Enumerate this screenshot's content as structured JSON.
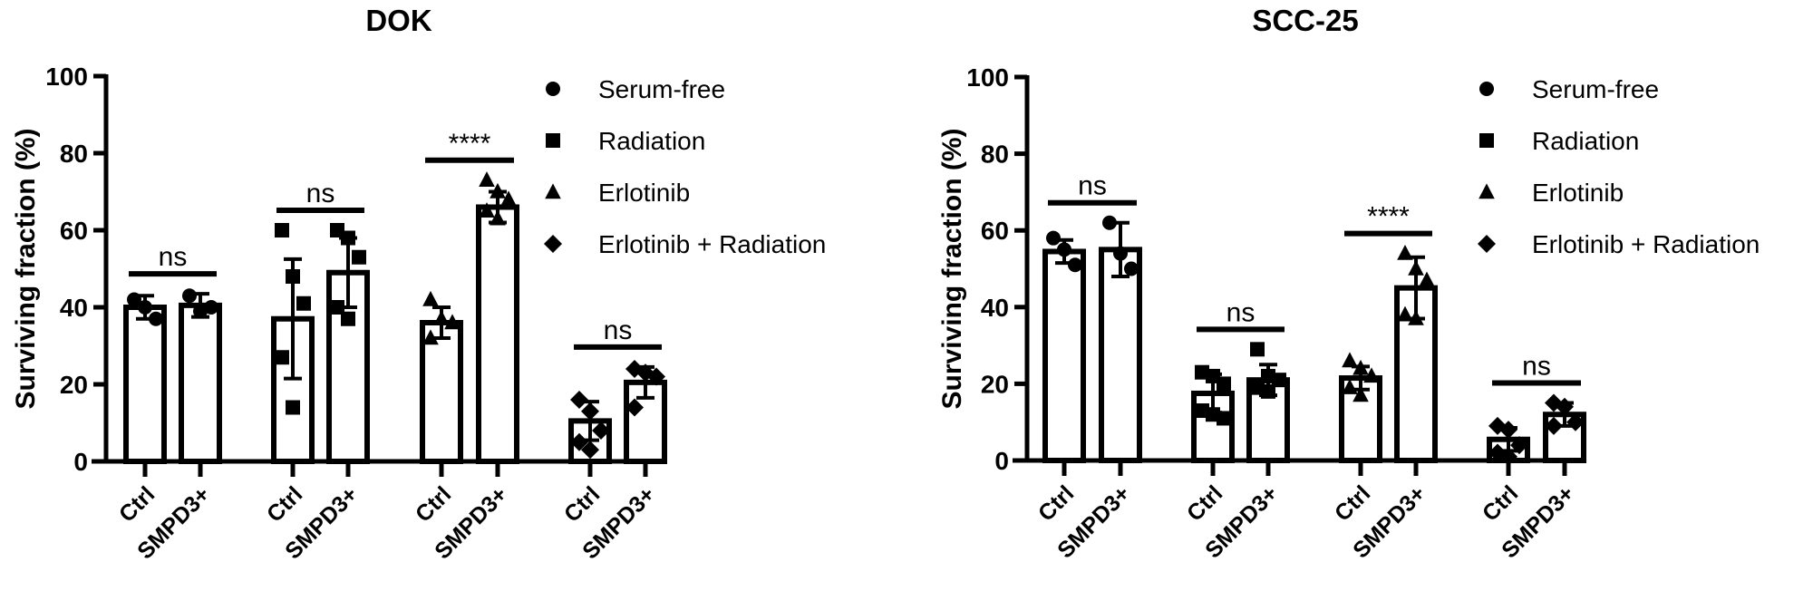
{
  "chart_data": [
    {
      "type": "bar",
      "title": "DOK",
      "xlabel": "",
      "ylabel": "Surviving fraction (%)",
      "ylim": [
        0,
        100
      ],
      "yticks": [
        0,
        20,
        40,
        60,
        80,
        100
      ],
      "grid": false,
      "legend_position": "upper right",
      "categories": [
        "Ctrl",
        "SMPD3+",
        "Ctrl",
        "SMPD3+",
        "Ctrl",
        "SMPD3+",
        "Ctrl",
        "SMPD3+"
      ],
      "groups": [
        {
          "treatment": "Serum-free",
          "marker": "circle",
          "ctrl": {
            "mean": 40,
            "sd": 3,
            "points": [
              42,
              40,
              37
            ]
          },
          "smpd3": {
            "mean": 40.5,
            "sd": 3,
            "points": [
              43,
              39,
              40
            ]
          },
          "significance": "ns"
        },
        {
          "treatment": "Radiation",
          "marker": "square",
          "ctrl": {
            "mean": 37,
            "sd": 15.5,
            "points": [
              60,
              48,
              41,
              27,
              14
            ]
          },
          "smpd3": {
            "mean": 49,
            "sd": 9,
            "points": [
              60,
              58,
              53,
              40,
              37
            ]
          },
          "significance": "ns"
        },
        {
          "treatment": "Erlotinib",
          "marker": "triangle",
          "ctrl": {
            "mean": 36,
            "sd": 4,
            "points": [
              42,
              37,
              36,
              32
            ]
          },
          "smpd3": {
            "mean": 66,
            "sd": 4,
            "points": [
              73,
              70,
              68,
              65,
              63
            ]
          },
          "significance": "****"
        },
        {
          "treatment": "Erlotinib + Radiation",
          "marker": "diamond",
          "ctrl": {
            "mean": 10.5,
            "sd": 5,
            "points": [
              16,
              13,
              8,
              5,
              3
            ]
          },
          "smpd3": {
            "mean": 20.5,
            "sd": 4,
            "points": [
              24,
              23,
              22,
              14
            ]
          },
          "significance": "ns"
        }
      ],
      "series": [
        {
          "name": "Ctrl",
          "values": [
            40,
            37,
            36,
            10.5
          ]
        },
        {
          "name": "SMPD3+",
          "values": [
            40.5,
            49,
            66,
            20.5
          ]
        }
      ],
      "legend": [
        "Serum-free",
        "Radiation",
        "Erlotinib",
        "Erlotinib + Radiation"
      ]
    },
    {
      "type": "bar",
      "title": "SCC-25",
      "xlabel": "",
      "ylabel": "Surviving fraction (%)",
      "ylim": [
        0,
        100
      ],
      "yticks": [
        0,
        20,
        40,
        60,
        80,
        100
      ],
      "grid": false,
      "legend_position": "upper right",
      "categories": [
        "Ctrl",
        "SMPD3+",
        "Ctrl",
        "SMPD3+",
        "Ctrl",
        "SMPD3+",
        "Ctrl",
        "SMPD3+"
      ],
      "groups": [
        {
          "treatment": "Serum-free",
          "marker": "circle",
          "ctrl": {
            "mean": 54.5,
            "sd": 3,
            "points": [
              58,
              55,
              51
            ]
          },
          "smpd3": {
            "mean": 55,
            "sd": 7,
            "points": [
              62,
              54,
              50
            ]
          },
          "significance": "ns"
        },
        {
          "treatment": "Radiation",
          "marker": "square",
          "ctrl": {
            "mean": 17.5,
            "sd": 5,
            "points": [
              23,
              22,
              20,
              13,
              12,
              11
            ]
          },
          "smpd3": {
            "mean": 21,
            "sd": 4,
            "points": [
              29,
              22,
              21,
              19,
              18
            ]
          },
          "significance": "ns"
        },
        {
          "treatment": "Erlotinib",
          "marker": "triangle",
          "ctrl": {
            "mean": 21.5,
            "sd": 3,
            "points": [
              26,
              24,
              22,
              19,
              17
            ]
          },
          "smpd3": {
            "mean": 45,
            "sd": 8,
            "points": [
              54,
              50,
              47,
              38,
              37
            ]
          },
          "significance": "****"
        },
        {
          "treatment": "Erlotinib + Radiation",
          "marker": "diamond",
          "ctrl": {
            "mean": 5.5,
            "sd": 3,
            "points": [
              9,
              8,
              4,
              2,
              1
            ]
          },
          "smpd3": {
            "mean": 12,
            "sd": 3,
            "points": [
              15,
              14,
              10,
              9
            ]
          },
          "significance": "ns"
        }
      ],
      "series": [
        {
          "name": "Ctrl",
          "values": [
            54.5,
            17.5,
            21.5,
            5.5
          ]
        },
        {
          "name": "SMPD3+",
          "values": [
            55,
            21,
            45,
            12
          ]
        }
      ],
      "legend": [
        "Serum-free",
        "Radiation",
        "Erlotinib",
        "Erlotinib + Radiation"
      ]
    }
  ],
  "panels": [
    {
      "title": "DOK"
    },
    {
      "title": "SCC-25"
    }
  ]
}
